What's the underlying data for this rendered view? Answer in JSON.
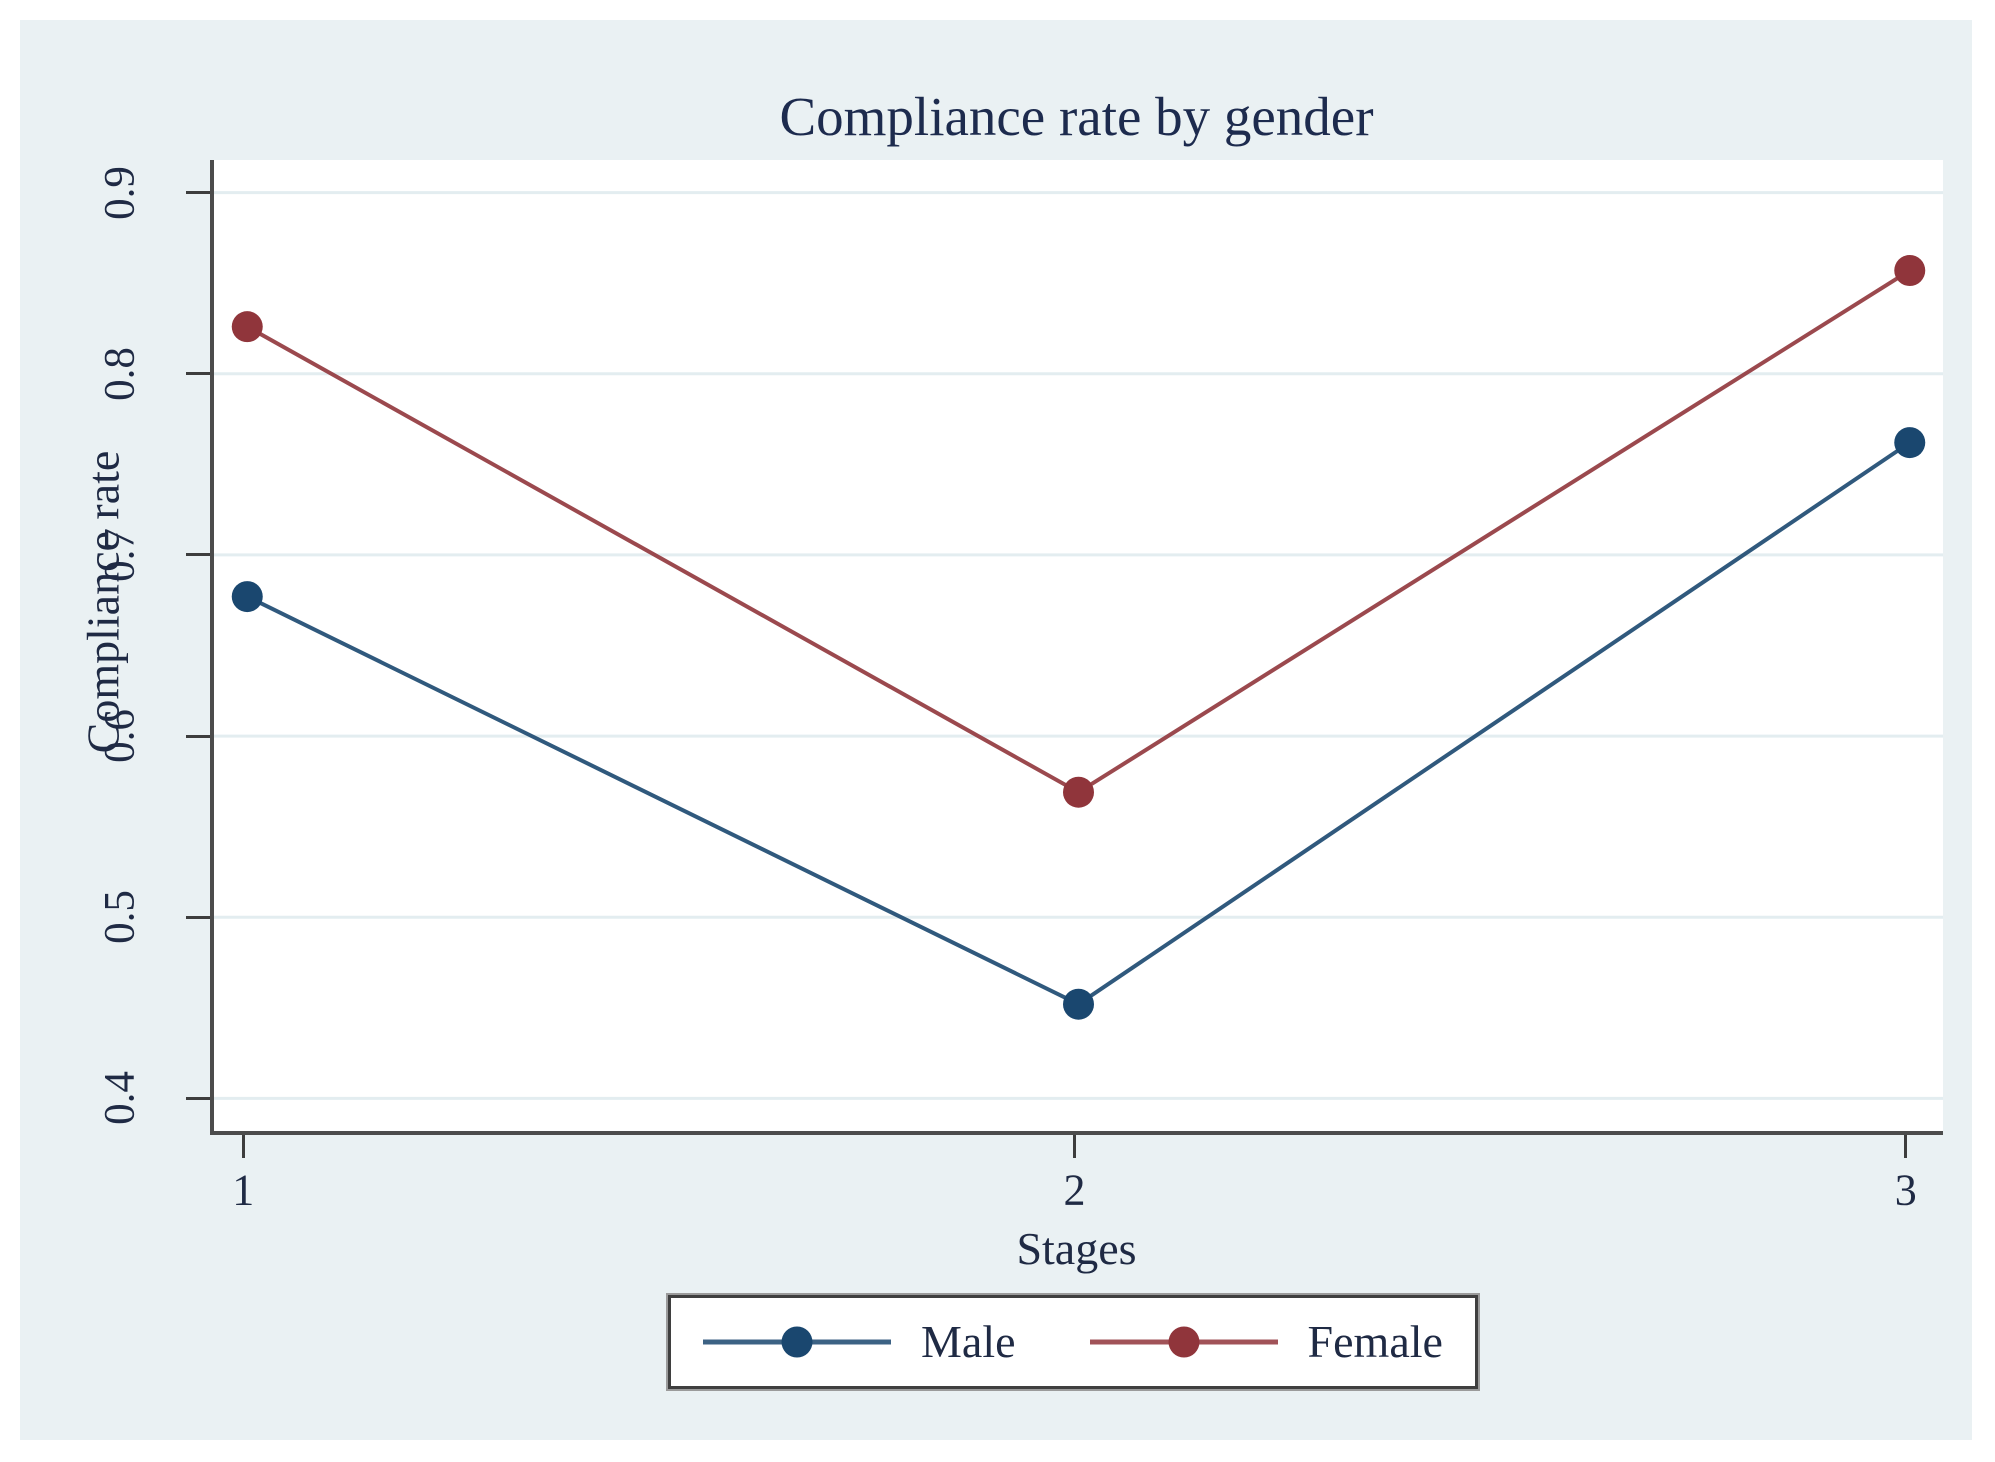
{
  "colors": {
    "background": "#eaf1f3",
    "plot_background": "#ffffff",
    "grid": "#e3edf0",
    "axis": "#4c4c4c",
    "tick": "#3d3d3d",
    "text": "#1f2a44",
    "male": "#1a476f",
    "female": "#90353b"
  },
  "chart_data": {
    "type": "line",
    "title": "Compliance rate by gender",
    "xlabel": "Stages",
    "ylabel": "Compliance rate",
    "x": [
      1,
      2,
      3
    ],
    "xticks": [
      "1",
      "2",
      "3"
    ],
    "yticks": [
      "0.9",
      "0.8",
      "0.7",
      "0.6",
      "0.5",
      "0.4"
    ],
    "ytick_values": [
      0.9,
      0.8,
      0.7,
      0.6,
      0.5,
      0.4
    ],
    "xlim": [
      0.96,
      3.04
    ],
    "ylim": [
      0.382,
      0.918
    ],
    "grid": true,
    "legend_position": "bottom-center",
    "series": [
      {
        "name": "Male",
        "color": "#1a476f",
        "values": [
          0.677,
          0.452,
          0.762
        ]
      },
      {
        "name": "Female",
        "color": "#90353b",
        "values": [
          0.826,
          0.569,
          0.857
        ]
      }
    ]
  }
}
